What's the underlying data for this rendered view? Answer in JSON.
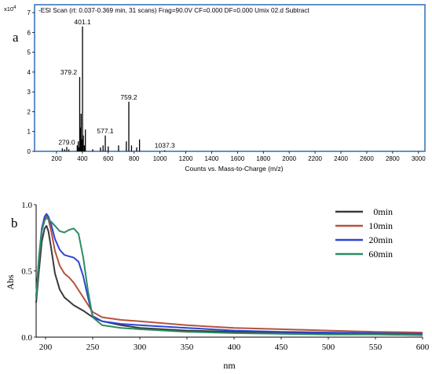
{
  "panel_a": {
    "label": "a",
    "header": "-ESI Scan (rt: 0.037-0.369 min, 31 scans) Frag=90.0V CF=0.000 DF=0.000 Umix  02.d  Subtract",
    "y_multiplier": "x10",
    "y_exponent": "4"
  },
  "panel_b": {
    "label": "b"
  },
  "colors": {
    "frame_a": "#2f6fb5",
    "peaks": "#000000",
    "series_0": "#3a3a3a",
    "series_10": "#b5533c",
    "series_20": "#2a46d6",
    "series_60": "#2e8b63"
  },
  "chart_data": [
    {
      "type": "bar",
      "title": "",
      "xlabel": "Counts vs. Mass-to-Charge (m/z)",
      "ylabel": "",
      "xlim": [
        30,
        3050
      ],
      "ylim": [
        0,
        7.4
      ],
      "x_ticks": [
        200,
        400,
        600,
        800,
        1000,
        1200,
        1400,
        1600,
        1800,
        2000,
        2200,
        2400,
        2600,
        2800,
        3000
      ],
      "y_ticks": [
        0,
        1,
        2,
        3,
        4,
        5,
        6,
        7
      ],
      "peaks": [
        {
          "x": 245,
          "y": 0.15
        },
        {
          "x": 262,
          "y": 0.1
        },
        {
          "x": 279.0,
          "y": 0.22
        },
        {
          "x": 295,
          "y": 0.1
        },
        {
          "x": 360,
          "y": 0.3
        },
        {
          "x": 368,
          "y": 0.5
        },
        {
          "x": 375,
          "y": 0.2
        },
        {
          "x": 379.2,
          "y": 3.75
        },
        {
          "x": 384,
          "y": 1.2
        },
        {
          "x": 390,
          "y": 1.9
        },
        {
          "x": 396,
          "y": 0.6
        },
        {
          "x": 401.1,
          "y": 6.3
        },
        {
          "x": 407,
          "y": 0.8
        },
        {
          "x": 415,
          "y": 0.3
        },
        {
          "x": 423,
          "y": 1.1
        },
        {
          "x": 480,
          "y": 0.1
        },
        {
          "x": 540,
          "y": 0.2
        },
        {
          "x": 560,
          "y": 0.3
        },
        {
          "x": 577.1,
          "y": 0.8
        },
        {
          "x": 600,
          "y": 0.25
        },
        {
          "x": 680,
          "y": 0.3
        },
        {
          "x": 740,
          "y": 0.5
        },
        {
          "x": 759.2,
          "y": 2.5
        },
        {
          "x": 780,
          "y": 0.3
        },
        {
          "x": 820,
          "y": 0.2
        },
        {
          "x": 842,
          "y": 0.6
        },
        {
          "x": 1037.3,
          "y": 0.05
        }
      ],
      "peak_labels": [
        {
          "x": 279.0,
          "y": 0.22,
          "text": "279.0"
        },
        {
          "x": 379.2,
          "y": 3.75,
          "text": "379.2"
        },
        {
          "x": 401.1,
          "y": 6.3,
          "text": "401.1"
        },
        {
          "x": 577.1,
          "y": 0.8,
          "text": "577.1"
        },
        {
          "x": 759.2,
          "y": 2.5,
          "text": "759.2"
        },
        {
          "x": 1037.3,
          "y": 0.05,
          "text": "1037.3"
        }
      ]
    },
    {
      "type": "line",
      "title": "",
      "xlabel": "nm",
      "ylabel": "Abs",
      "xlim": [
        190,
        600
      ],
      "ylim": [
        0,
        1.0
      ],
      "x_ticks": [
        200,
        250,
        300,
        350,
        400,
        450,
        500,
        550,
        600
      ],
      "y_ticks": [
        0.0,
        0.5,
        1.0
      ],
      "y_tick_labels": [
        "0.0",
        "0.5",
        "1.0"
      ],
      "legend_position": "top-right",
      "series": [
        {
          "name": "0min",
          "color": "#3a3a3a",
          "x": [
            190,
            193,
            196,
            199,
            201,
            203,
            206,
            210,
            215,
            220,
            230,
            240,
            250,
            260,
            280,
            300,
            350,
            400,
            450,
            500,
            550,
            600
          ],
          "y": [
            0.26,
            0.5,
            0.72,
            0.82,
            0.84,
            0.8,
            0.67,
            0.48,
            0.36,
            0.3,
            0.24,
            0.2,
            0.15,
            0.12,
            0.09,
            0.07,
            0.05,
            0.04,
            0.035,
            0.03,
            0.025,
            0.02
          ]
        },
        {
          "name": "10min",
          "color": "#b5533c",
          "x": [
            190,
            193,
            196,
            199,
            201,
            203,
            206,
            210,
            215,
            220,
            225,
            230,
            240,
            250,
            260,
            280,
            300,
            350,
            400,
            450,
            500,
            550,
            600
          ],
          "y": [
            0.3,
            0.58,
            0.8,
            0.9,
            0.92,
            0.89,
            0.8,
            0.65,
            0.54,
            0.48,
            0.45,
            0.41,
            0.3,
            0.19,
            0.15,
            0.13,
            0.12,
            0.09,
            0.07,
            0.06,
            0.05,
            0.04,
            0.035
          ]
        },
        {
          "name": "20min",
          "color": "#2a46d6",
          "x": [
            190,
            193,
            196,
            199,
            201,
            203,
            206,
            210,
            215,
            220,
            225,
            230,
            235,
            240,
            245,
            250,
            260,
            280,
            300,
            350,
            400,
            450,
            500,
            550,
            600
          ],
          "y": [
            0.3,
            0.6,
            0.82,
            0.91,
            0.93,
            0.91,
            0.85,
            0.74,
            0.66,
            0.62,
            0.61,
            0.6,
            0.57,
            0.46,
            0.3,
            0.16,
            0.12,
            0.1,
            0.09,
            0.07,
            0.05,
            0.04,
            0.035,
            0.03,
            0.025
          ]
        },
        {
          "name": "60min",
          "color": "#2e8b63",
          "x": [
            190,
            193,
            196,
            199,
            201,
            203,
            206,
            210,
            215,
            220,
            225,
            230,
            235,
            240,
            245,
            250,
            260,
            280,
            300,
            350,
            400,
            450,
            500,
            550,
            600
          ],
          "y": [
            0.3,
            0.6,
            0.8,
            0.88,
            0.9,
            0.89,
            0.87,
            0.84,
            0.8,
            0.79,
            0.81,
            0.82,
            0.78,
            0.6,
            0.35,
            0.15,
            0.09,
            0.07,
            0.06,
            0.04,
            0.03,
            0.025,
            0.02,
            0.02,
            0.015
          ]
        }
      ]
    }
  ]
}
